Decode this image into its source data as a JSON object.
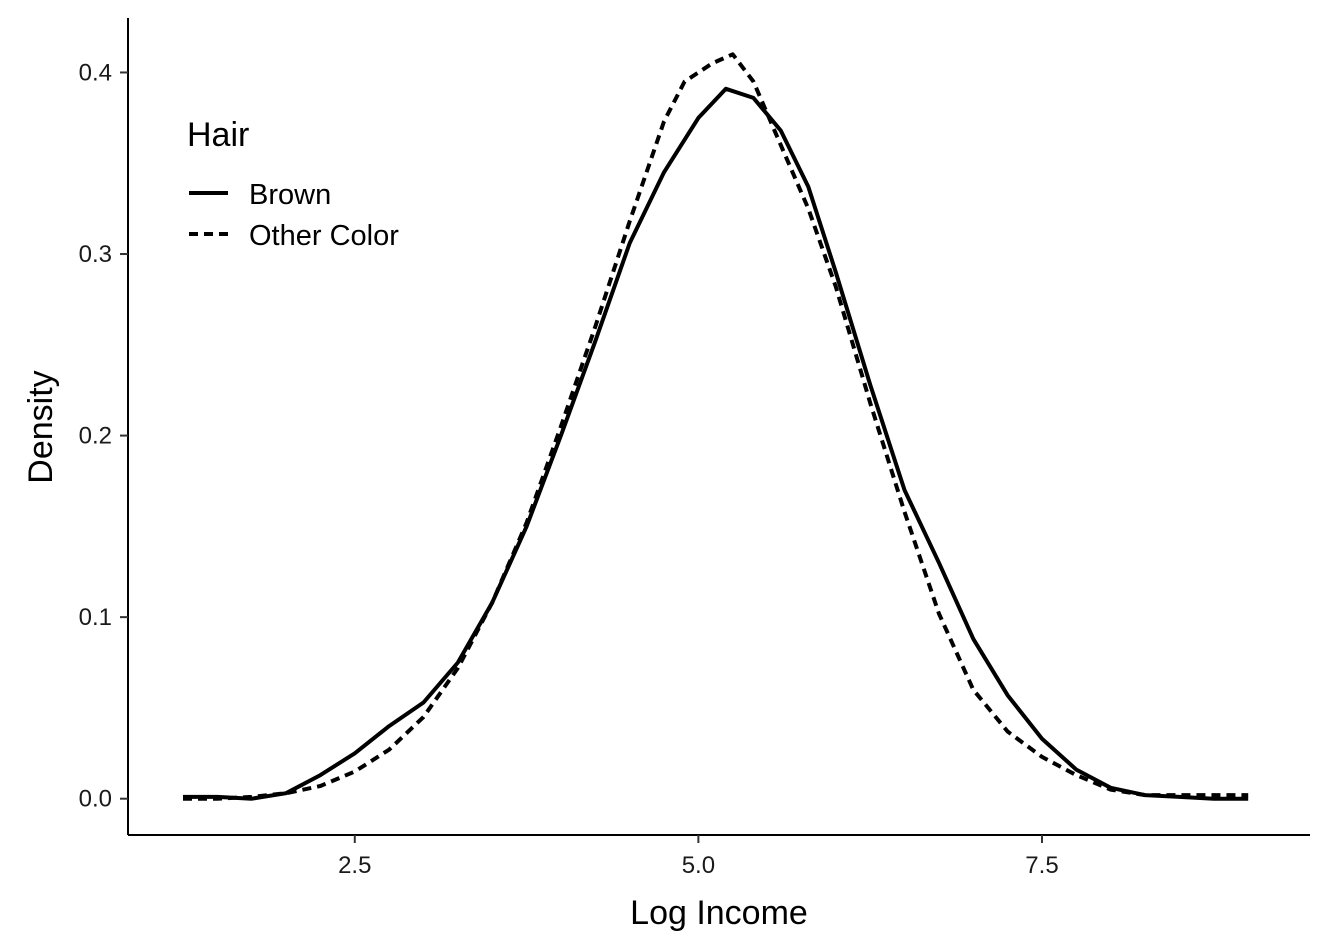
{
  "chart_data": {
    "type": "line",
    "title": "",
    "xlabel": "Log Income",
    "ylabel": "Density",
    "xlim": [
      0.85,
      9.45
    ],
    "ylim": [
      -0.02,
      0.43
    ],
    "x_ticks": [
      {
        "value": 2.5,
        "label": "2.5"
      },
      {
        "value": 5.0,
        "label": "5.0"
      },
      {
        "value": 7.5,
        "label": "7.5"
      }
    ],
    "y_ticks": [
      {
        "value": 0.0,
        "label": "0.0"
      },
      {
        "value": 0.1,
        "label": "0.1"
      },
      {
        "value": 0.2,
        "label": "0.2"
      },
      {
        "value": 0.3,
        "label": "0.3"
      },
      {
        "value": 0.4,
        "label": "0.4"
      }
    ],
    "grid": false,
    "legend": {
      "title": "Hair",
      "position": "top-left",
      "entries": [
        "Brown",
        "Other Color"
      ]
    },
    "series": [
      {
        "name": "Brown",
        "line_style": "solid",
        "x": [
          1.25,
          1.5,
          1.75,
          2.0,
          2.25,
          2.5,
          2.75,
          3.0,
          3.25,
          3.5,
          3.75,
          4.0,
          4.25,
          4.5,
          4.75,
          5.0,
          5.2,
          5.4,
          5.6,
          5.8,
          6.0,
          6.25,
          6.5,
          6.75,
          7.0,
          7.25,
          7.5,
          7.75,
          8.0,
          8.25,
          8.5,
          8.75,
          9.0
        ],
        "y": [
          0.001,
          0.001,
          0.0,
          0.003,
          0.013,
          0.025,
          0.04,
          0.053,
          0.075,
          0.108,
          0.15,
          0.2,
          0.252,
          0.306,
          0.345,
          0.375,
          0.391,
          0.386,
          0.368,
          0.337,
          0.29,
          0.228,
          0.17,
          0.13,
          0.088,
          0.057,
          0.033,
          0.016,
          0.006,
          0.002,
          0.001,
          0.0,
          0.0
        ]
      },
      {
        "name": "Other Color",
        "line_style": "dashed",
        "x": [
          1.25,
          1.5,
          1.75,
          2.0,
          2.25,
          2.5,
          2.75,
          3.0,
          3.25,
          3.5,
          3.75,
          4.0,
          4.25,
          4.5,
          4.75,
          4.9,
          5.0,
          5.1,
          5.25,
          5.4,
          5.6,
          5.8,
          6.0,
          6.25,
          6.5,
          6.75,
          7.0,
          7.25,
          7.5,
          7.75,
          8.0,
          8.25,
          8.5,
          8.75,
          9.0
        ],
        "y": [
          0.0,
          0.0,
          0.001,
          0.003,
          0.007,
          0.015,
          0.027,
          0.045,
          0.072,
          0.108,
          0.152,
          0.205,
          0.26,
          0.318,
          0.373,
          0.395,
          0.4,
          0.405,
          0.41,
          0.395,
          0.36,
          0.325,
          0.282,
          0.218,
          0.158,
          0.102,
          0.06,
          0.037,
          0.023,
          0.013,
          0.005,
          0.002,
          0.002,
          0.002,
          0.002
        ]
      }
    ]
  }
}
